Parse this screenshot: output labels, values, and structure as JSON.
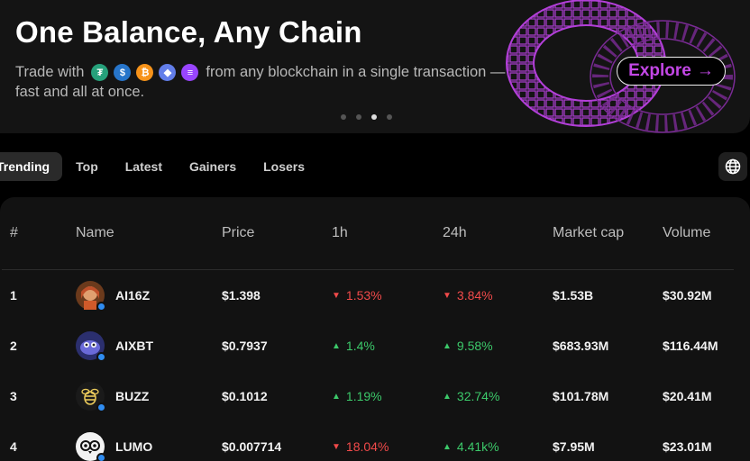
{
  "banner": {
    "title": "One Balance, Any Chain",
    "subtitle_pre": "Trade with",
    "subtitle_post": "from any blockchain in a single transaction — fast and all at once.",
    "coins": [
      {
        "icon": "tether-icon",
        "glyph": "₮",
        "color": "#26a17b"
      },
      {
        "icon": "usdc-icon",
        "glyph": "$",
        "color": "#2775ca"
      },
      {
        "icon": "bitcoin-icon",
        "glyph": "₿",
        "color": "#f7931a"
      },
      {
        "icon": "ethereum-icon",
        "glyph": "◆",
        "color": "#627eea"
      },
      {
        "icon": "solana-icon",
        "glyph": "≡",
        "color": "#9945ff"
      }
    ],
    "cta": "Explore",
    "cta_arrow": "→",
    "carousel_dots": 4,
    "carousel_active": 3
  },
  "tabs": [
    {
      "label": "Trending",
      "active": true
    },
    {
      "label": "Top",
      "active": false
    },
    {
      "label": "Latest",
      "active": false
    },
    {
      "label": "Gainers",
      "active": false
    },
    {
      "label": "Losers",
      "active": false
    }
  ],
  "table": {
    "headers": {
      "rank": "#",
      "name": "Name",
      "price": "Price",
      "h1": "1h",
      "h24": "24h",
      "mcap": "Market cap",
      "volume": "Volume"
    },
    "rows": [
      {
        "rank": "1",
        "name": "AI16Z",
        "price": "$1.398",
        "h1": "1.53%",
        "h1_dir": "down",
        "h24": "3.84%",
        "h24_dir": "down",
        "mcap": "$1.53B",
        "volume": "$30.92M",
        "avatar_icon": "ai16z-avatar-icon"
      },
      {
        "rank": "2",
        "name": "AIXBT",
        "price": "$0.7937",
        "h1": "1.4%",
        "h1_dir": "up",
        "h24": "9.58%",
        "h24_dir": "up",
        "mcap": "$683.93M",
        "volume": "$116.44M",
        "avatar_icon": "aixbt-avatar-icon"
      },
      {
        "rank": "3",
        "name": "BUZZ",
        "price": "$0.1012",
        "h1": "1.19%",
        "h1_dir": "up",
        "h24": "32.74%",
        "h24_dir": "up",
        "mcap": "$101.78M",
        "volume": "$20.41M",
        "avatar_icon": "buzz-bee-icon"
      },
      {
        "rank": "4",
        "name": "LUMO",
        "price": "$0.007714",
        "h1": "18.04%",
        "h1_dir": "down",
        "h24": "4.41k%",
        "h24_dir": "up",
        "mcap": "$7.95M",
        "volume": "$23.01M",
        "avatar_icon": "lumo-owl-icon"
      }
    ]
  },
  "colors": {
    "accent": "#c347e6",
    "up": "#3cc96a",
    "down": "#f14a4a"
  }
}
